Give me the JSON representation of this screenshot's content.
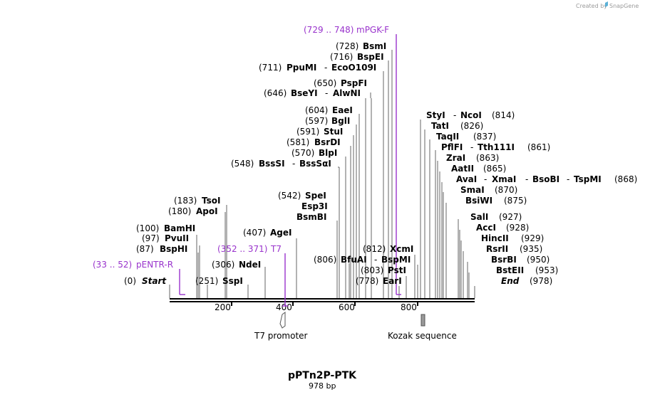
{
  "header": {
    "created_by": "Created by",
    "brand": "SnapGene"
  },
  "plasmid": {
    "name": "pPTn2P-PTK",
    "length": "978 bp"
  },
  "ticks": [
    "200",
    "400",
    "600",
    "800"
  ],
  "features": {
    "t7_promoter": "T7 promoter",
    "kozak": "Kozak sequence"
  },
  "primers": {
    "mpgk": {
      "range": "(729 .. 748)",
      "name": "mPGK-F"
    },
    "t7": {
      "range": "(352 .. 371)",
      "name": "T7"
    },
    "pentr": {
      "range": "(33 .. 52)",
      "name": "pENTR-R"
    }
  },
  "left_labels": [
    {
      "pos": "(728)",
      "name": "BsmI"
    },
    {
      "pos": "(716)",
      "name": "BspEI"
    },
    {
      "pos": "(711)",
      "name": "PpuMI",
      "extra": [
        "EcoO109I"
      ]
    },
    {
      "pos": "(650)",
      "name": "PspFI"
    },
    {
      "pos": "(646)",
      "name": "BseYI",
      "extra": [
        "AlwNI"
      ]
    },
    {
      "pos": "(604)",
      "name": "EaeI"
    },
    {
      "pos": "(597)",
      "name": "BglI"
    },
    {
      "pos": "(591)",
      "name": "StuI"
    },
    {
      "pos": "(581)",
      "name": "BsrDI"
    },
    {
      "pos": "(570)",
      "name": "BlpI"
    },
    {
      "pos": "(548)",
      "name": "BssSI",
      "extra": [
        "BssSαI"
      ]
    },
    {
      "pos": "(542)",
      "name": "SpeI"
    },
    {
      "pos": "",
      "name": "Esp3I"
    },
    {
      "pos": "",
      "name": "BsmBI"
    },
    {
      "pos": "(407)",
      "name": "AgeI"
    },
    {
      "pos": "(306)",
      "name": "NdeI"
    },
    {
      "pos": "(183)",
      "name": "TsoI"
    },
    {
      "pos": "(180)",
      "name": "ApoI"
    },
    {
      "pos": "(100)",
      "name": "BamHI"
    },
    {
      "pos": "(97)",
      "name": "PvuII"
    },
    {
      "pos": "(87)",
      "name": "BspHI"
    },
    {
      "pos": "(251)",
      "name": "SspI"
    },
    {
      "pos": "(0)",
      "name": "Start"
    },
    {
      "pos": "(806)",
      "name": "BfuAI",
      "extra": [
        "BspMI"
      ]
    },
    {
      "pos": "(812)",
      "name": "XcmI"
    },
    {
      "pos": "(803)",
      "name": "PstI"
    },
    {
      "pos": "(778)",
      "name": "EarI"
    }
  ],
  "right_labels": [
    {
      "name": "StyI",
      "extra": [
        "NcoI"
      ],
      "pos": "(814)"
    },
    {
      "name": "TatI",
      "pos": "(826)"
    },
    {
      "name": "TaqII",
      "pos": "(837)"
    },
    {
      "name": "PflFI",
      "extra": [
        "Tth111I"
      ],
      "pos": "(861)"
    },
    {
      "name": "ZraI",
      "pos": "(863)"
    },
    {
      "name": "AatII",
      "pos": "(865)"
    },
    {
      "name": "AvaI",
      "extra": [
        "XmaI",
        "BsoBI",
        "TspMI"
      ],
      "pos": "(868)"
    },
    {
      "name": "SmaI",
      "pos": "(870)"
    },
    {
      "name": "BsiWI",
      "pos": "(875)"
    },
    {
      "name": "SalI",
      "pos": "(927)"
    },
    {
      "name": "AccI",
      "pos": "(928)"
    },
    {
      "name": "HincII",
      "pos": "(929)"
    },
    {
      "name": "RsrII",
      "pos": "(935)"
    },
    {
      "name": "BsrBI",
      "pos": "(950)"
    },
    {
      "name": "BstEII",
      "pos": "(953)"
    },
    {
      "name": "End",
      "pos": "(978)"
    }
  ],
  "colors": {
    "primer": "#9933cc",
    "line": "#666666",
    "backbone": "#000000",
    "kozak": "#999999"
  }
}
